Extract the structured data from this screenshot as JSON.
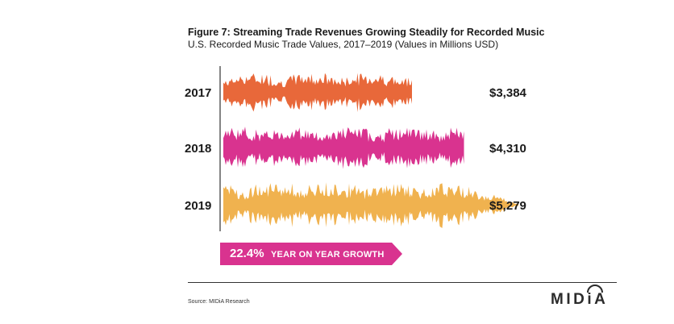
{
  "figure": {
    "title": "Figure 7: Streaming Trade Revenues Growing Steadily for Recorded Music",
    "subtitle": "U.S. Recorded Music Trade Values, 2017–2019 (Values in Millions USD)"
  },
  "chart_data": {
    "type": "bar",
    "title": "Figure 7: Streaming Trade Revenues Growing Steadily for Recorded Music",
    "subtitle": "U.S. Recorded Music Trade Values, 2017–2019 (Values in Millions USD)",
    "categories": [
      "2017",
      "2018",
      "2019"
    ],
    "values": [
      3384,
      4310,
      5279
    ],
    "value_labels": [
      "$3,384",
      "$4,310",
      "$5,279"
    ],
    "colors": [
      "#e8683a",
      "#d9338f",
      "#f0b24f"
    ],
    "xlabel": "",
    "ylabel": "",
    "grid": false,
    "legend": "none",
    "style": "audio-waveform bars"
  },
  "growth": {
    "percent": "22.4%",
    "label": "YEAR ON YEAR GROWTH",
    "color": "#d9338f"
  },
  "source": "Source: MIDiA Research",
  "logo": "MIDiA"
}
